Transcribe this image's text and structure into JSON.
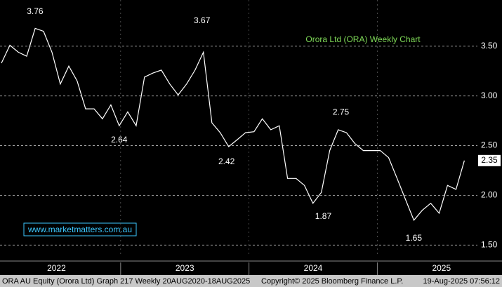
{
  "chart_data": {
    "type": "line",
    "title": "Orora Ltd (ORA) Weekly Chart",
    "watermark": "www.marketmatters.com.au",
    "x": [
      2022.071,
      2022.137,
      2022.203,
      2022.268,
      2022.334,
      2022.399,
      2022.465,
      2022.53,
      2022.596,
      2022.661,
      2022.727,
      2022.793,
      2022.858,
      2022.924,
      2022.989,
      2023.055,
      2023.121,
      2023.186,
      2023.252,
      2023.317,
      2023.383,
      2023.448,
      2023.514,
      2023.58,
      2023.645,
      2023.711,
      2023.776,
      2023.842,
      2023.908,
      2023.973,
      2024.039,
      2024.104,
      2024.17,
      2024.236,
      2024.301,
      2024.367,
      2024.432,
      2024.498,
      2024.564,
      2024.629,
      2024.695,
      2024.76,
      2024.826,
      2024.891,
      2024.957,
      2025.023,
      2025.088,
      2025.154,
      2025.219,
      2025.285,
      2025.35,
      2025.416,
      2025.482,
      2025.547,
      2025.613,
      2025.678
    ],
    "series": [
      {
        "name": "ORA",
        "color": "#ffffff",
        "values": [
          3.33,
          3.51,
          3.44,
          3.4,
          3.68,
          3.65,
          3.44,
          3.12,
          3.3,
          3.15,
          2.87,
          2.87,
          2.77,
          2.91,
          2.7,
          2.84,
          2.7,
          3.19,
          3.23,
          3.26,
          3.12,
          3.01,
          3.12,
          3.26,
          3.44,
          2.73,
          2.63,
          2.49,
          2.56,
          2.63,
          2.64,
          2.77,
          2.66,
          2.7,
          2.17,
          2.17,
          2.1,
          1.92,
          2.03,
          2.45,
          2.66,
          2.63,
          2.52,
          2.45,
          2.45,
          2.45,
          2.38,
          2.17,
          1.96,
          1.75,
          1.85,
          1.92,
          1.82,
          2.1,
          2.06,
          2.35
        ]
      }
    ],
    "annotations": [
      {
        "label": "3.76",
        "value": 3.76,
        "x": 2022.333,
        "position": "above"
      },
      {
        "label": "3.67",
        "value": 3.67,
        "x": 2023.634,
        "position": "above"
      },
      {
        "label": "2.64",
        "value": 2.64,
        "x": 2022.989,
        "position": "below"
      },
      {
        "label": "2.42",
        "value": 2.42,
        "x": 2023.825,
        "position": "below"
      },
      {
        "label": "2.75",
        "value": 2.75,
        "x": 2024.716,
        "position": "above"
      },
      {
        "label": "1.87",
        "value": 1.87,
        "x": 2024.579,
        "position": "below"
      },
      {
        "label": "1.65",
        "value": 1.65,
        "x": 2025.284,
        "position": "below"
      }
    ],
    "last_value": 2.35,
    "xlim": [
      2022.06,
      2025.78
    ],
    "xticks": [
      {
        "value": 2022.5,
        "label": "2022"
      },
      {
        "value": 2023.5,
        "label": "2023"
      },
      {
        "value": 2024.5,
        "label": "2024"
      },
      {
        "value": 2025.5,
        "label": "2025"
      }
    ],
    "ylim": [
      1.41,
      3.965
    ],
    "yticks": [
      {
        "value": 1.5,
        "label": "1.50"
      },
      {
        "value": 2,
        "label": "2.00"
      },
      {
        "value": 2.5,
        "label": "2.50"
      },
      {
        "value": 3,
        "label": "3.00"
      },
      {
        "value": 3.5,
        "label": "3.50"
      }
    ],
    "grid": true,
    "footer": [
      "ORA AU Equity (Orora Ltd) Graph 217  Weekly 20AUG2020-18AUG2025",
      "Copyright© 2025 Bloomberg Finance L.P.",
      "19-Aug-2025 07:56:12"
    ]
  }
}
